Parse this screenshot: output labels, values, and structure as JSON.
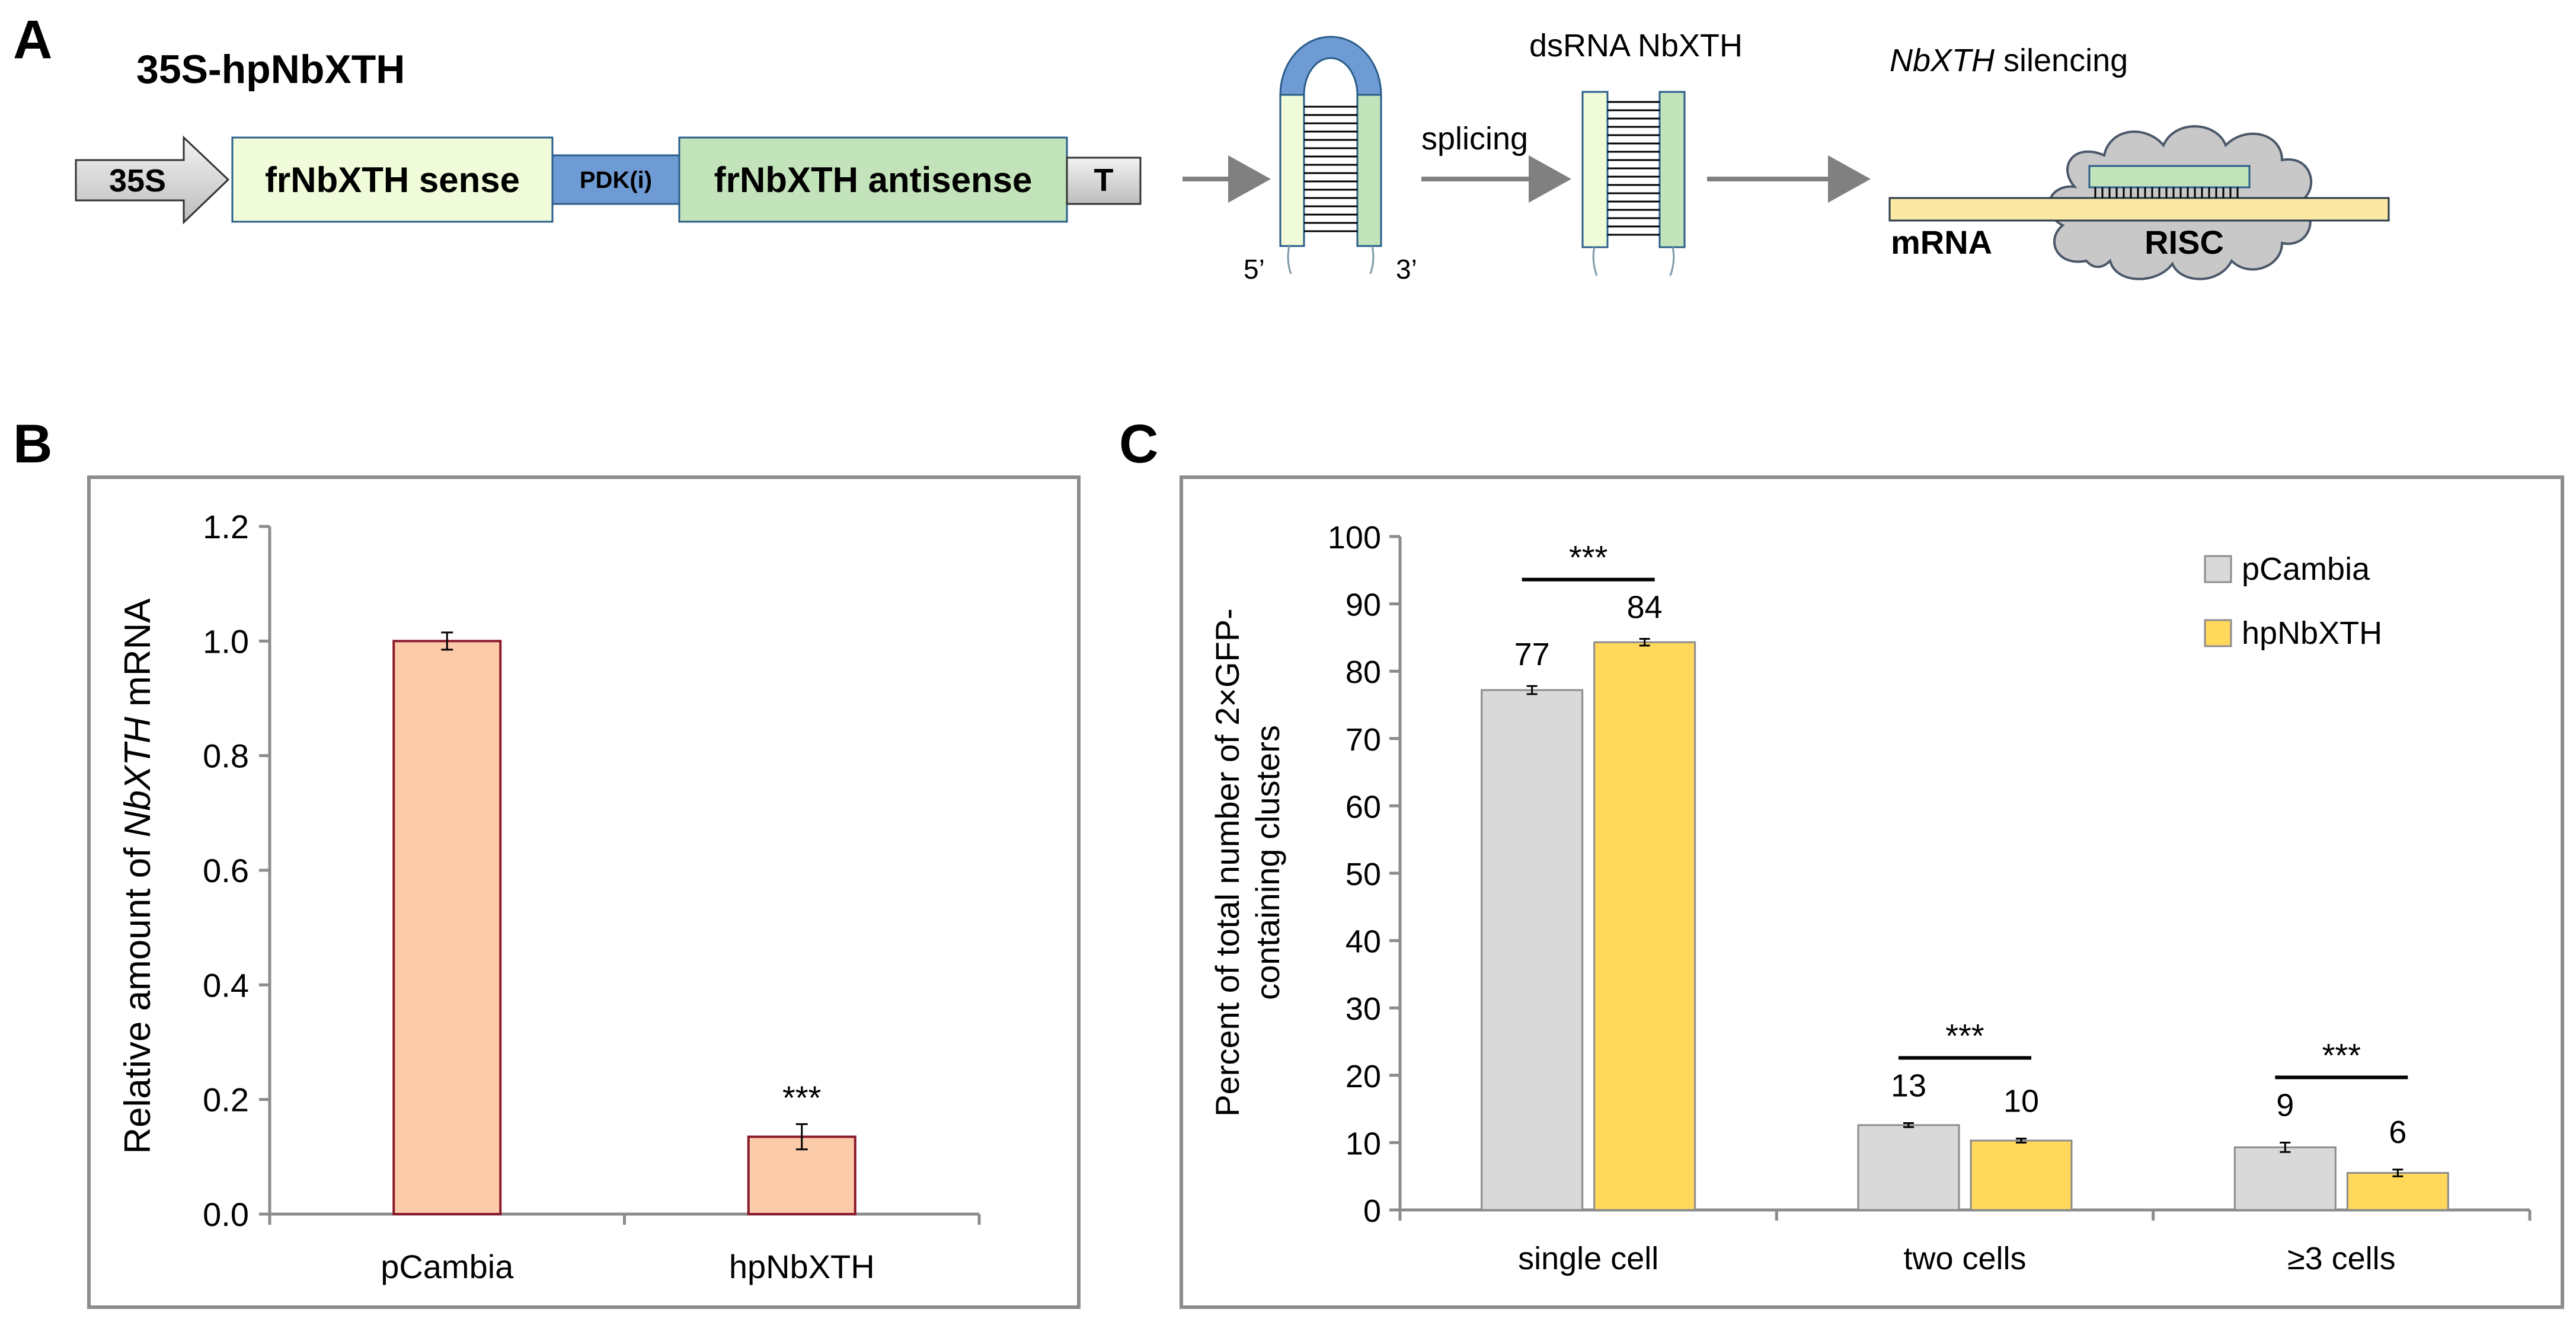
{
  "panels": {
    "a": "A",
    "b": "B",
    "c": "C"
  },
  "panel_a": {
    "construct_title": "35S-hpNbXTH",
    "promoter": "35S",
    "sense": "frNbXTH sense",
    "intron": "PDK(i)",
    "antisense": "frNbXTH antisense",
    "terminator": "T",
    "hairpin_5prime": "5’",
    "hairpin_3prime": "3’",
    "splicing_label": "splicing",
    "dsrna_label": "dsRNA NbXTH",
    "silencing_gene": "NbXTH",
    "silencing_word": " silencing",
    "mrna_label": "mRNA",
    "risc_label": "RISC",
    "colors": {
      "sense": "#f0fcd9",
      "antisense": "#c3e4bb",
      "intron": "#6f9bd4",
      "mrna": "#fbe9a3",
      "risc": "#c8c8c8",
      "promoter": "#dcdcdc"
    }
  },
  "chart_data": [
    {
      "panel": "B",
      "type": "bar",
      "categories": [
        "pCambia",
        "hpNbXTH"
      ],
      "values": [
        1.0,
        0.135
      ],
      "errors": [
        0.015,
        0.022
      ],
      "annotations": [
        "",
        "***"
      ],
      "ylabel_prefix": "Relative amount of ",
      "ylabel_gene": "NbXTH",
      "ylabel_suffix": " mRNA",
      "xlabel": "",
      "ylim": [
        0,
        1.2
      ],
      "yticks": [
        "0.0",
        "0.2",
        "0.4",
        "0.6",
        "0.8",
        "1.0",
        "1.2"
      ],
      "grid": false,
      "colors": {
        "fill": "#fccbaa",
        "stroke": "#8b1a2c"
      }
    },
    {
      "panel": "C",
      "type": "bar",
      "categories": [
        "single cell",
        "two cells",
        "≥3 cells"
      ],
      "series": [
        {
          "name": "pCambia",
          "values": [
            77.2,
            12.6,
            9.3
          ],
          "errors": [
            0.6,
            0.3,
            0.7
          ],
          "labels": [
            "77",
            "13",
            "9"
          ]
        },
        {
          "name": "hpNbXTH",
          "values": [
            84.3,
            10.3,
            5.5
          ],
          "errors": [
            0.5,
            0.3,
            0.5
          ],
          "labels": [
            "84",
            "10",
            "6"
          ]
        }
      ],
      "significance": [
        "***",
        "***",
        "***"
      ],
      "ylabel_line1": "Percent of total number of 2×GFP-",
      "ylabel_line2": "containing clusters",
      "xlabel": "",
      "ylim": [
        0,
        100
      ],
      "yticks": [
        "0",
        "10",
        "20",
        "30",
        "40",
        "50",
        "60",
        "70",
        "80",
        "90",
        "100"
      ],
      "legend_position": "top-right",
      "grid": false,
      "colors": {
        "pCambia": "#d9d9d9",
        "hpNbXTH": "#ffd85c",
        "stroke": "#8c8c8c"
      }
    }
  ]
}
